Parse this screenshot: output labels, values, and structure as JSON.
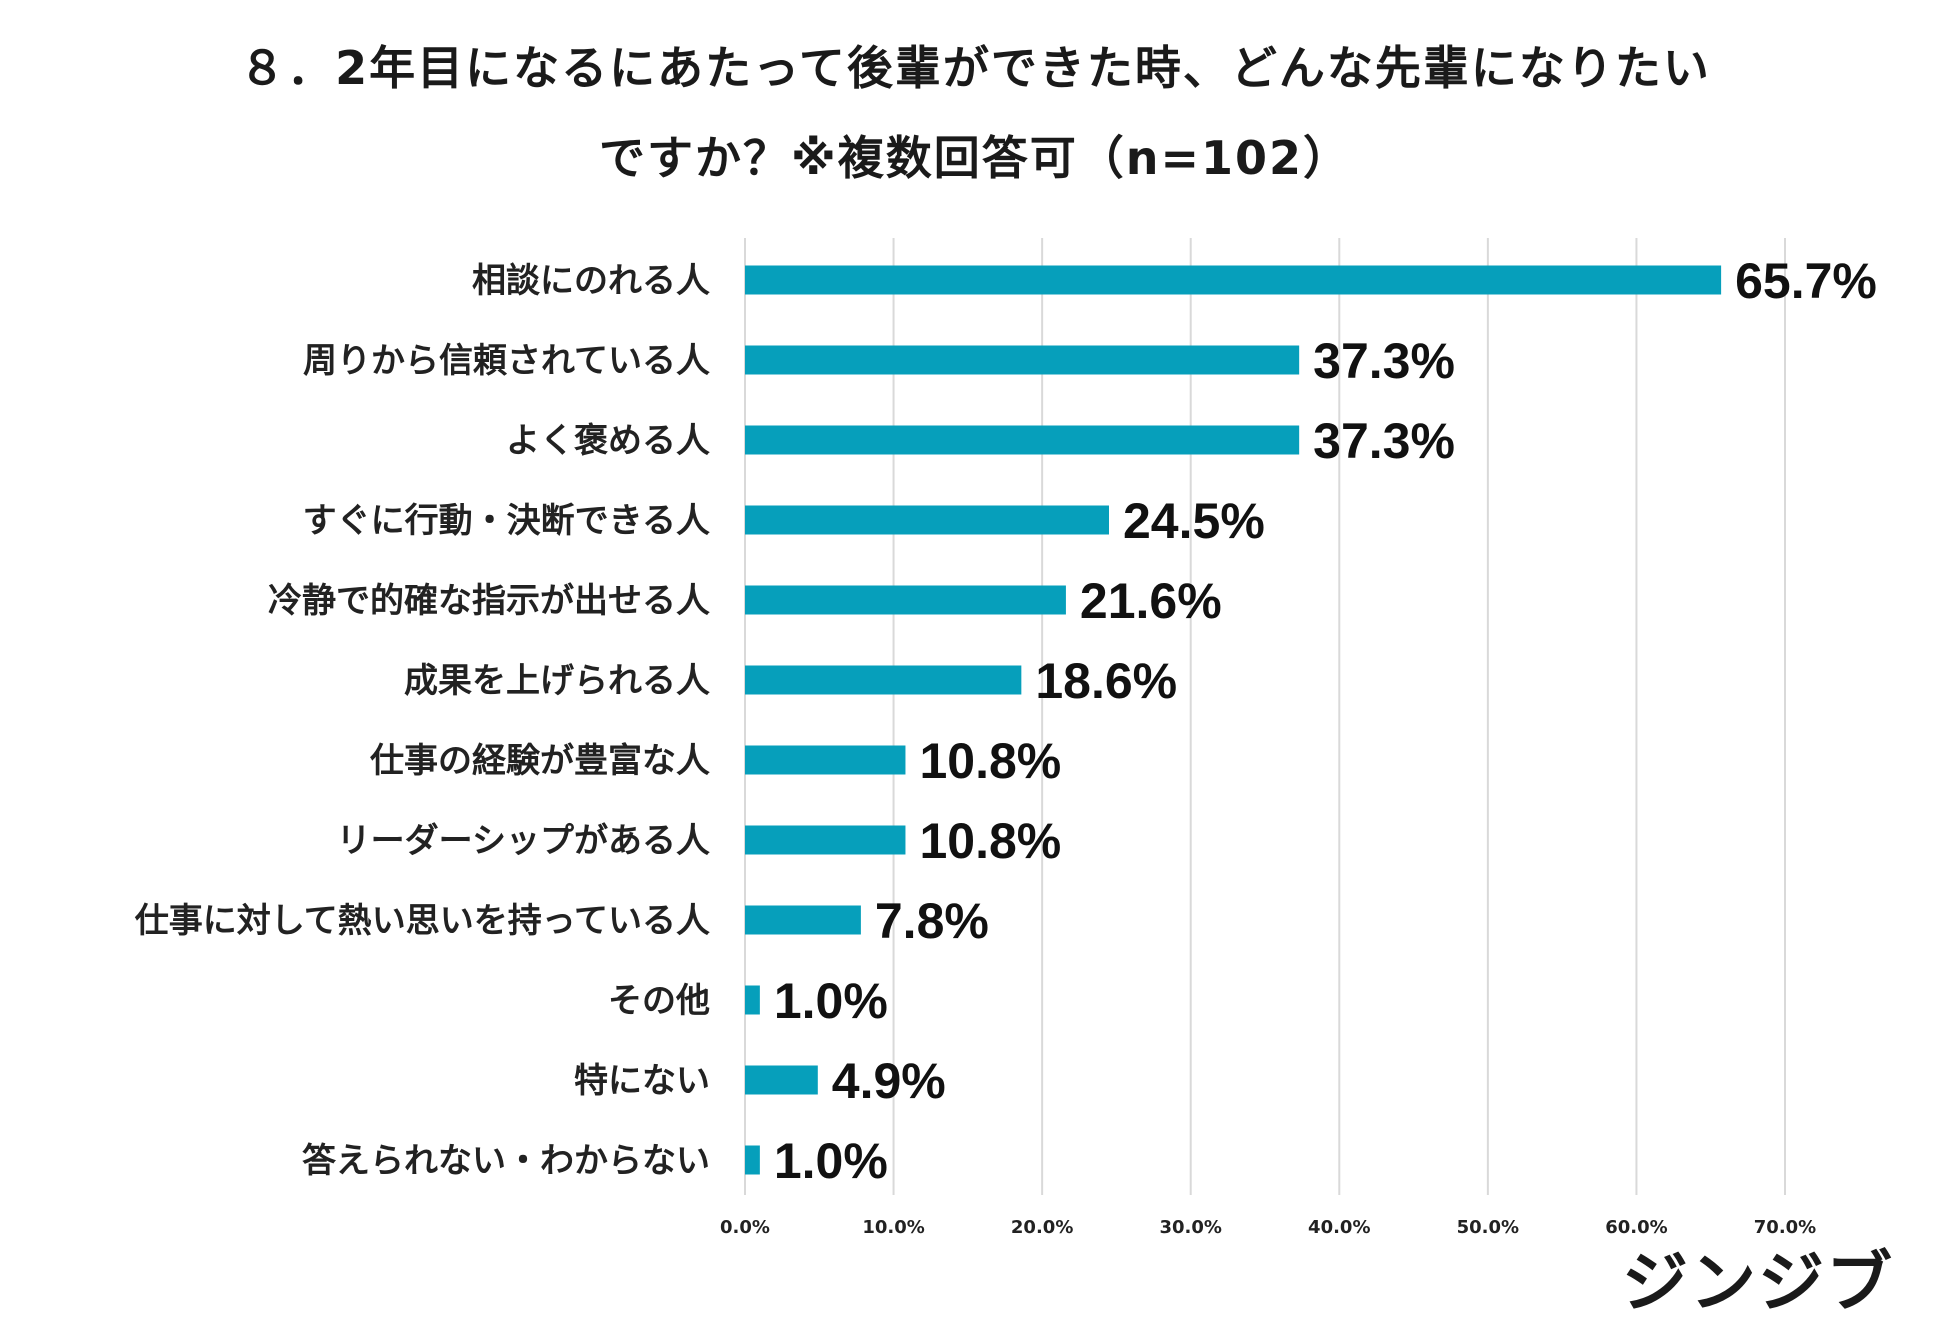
{
  "chart_data": {
    "type": "bar",
    "orientation": "horizontal",
    "title_lines": [
      "８．2年目になるにあたって後輩ができた時、どんな先輩になりたい",
      "ですか？※複数回答可（n=102）"
    ],
    "categories": [
      "相談にのれる人",
      "周りから信頼されている人",
      "よく褒める人",
      "すぐに行動・決断できる人",
      "冷静で的確な指示が出せる人",
      "成果を上げられる人",
      "仕事の経験が豊富な人",
      "リーダーシップがある人",
      "仕事に対して熱い思いを持っている人",
      "その他",
      "特にない",
      "答えられない・わからない"
    ],
    "values": [
      65.7,
      37.3,
      37.3,
      24.5,
      21.6,
      18.6,
      10.8,
      10.8,
      7.8,
      1.0,
      4.9,
      1.0
    ],
    "value_labels": [
      "65.7%",
      "37.3%",
      "37.3%",
      "24.5%",
      "21.6%",
      "18.6%",
      "10.8%",
      "10.8%",
      "7.8%",
      "1.0%",
      "4.9%",
      "1.0%"
    ],
    "xlim": [
      0,
      70
    ],
    "xticks": [
      0,
      10,
      20,
      30,
      40,
      50,
      60,
      70
    ],
    "xtick_labels": [
      "0.0%",
      "10.0%",
      "20.0%",
      "30.0%",
      "40.0%",
      "50.0%",
      "60.0%",
      "70.0%"
    ],
    "xlabel": "",
    "ylabel": "",
    "grid": true,
    "bar_color": "#069fbb",
    "grid_color": "#d9d9d9"
  },
  "brand": "ジンジブ"
}
